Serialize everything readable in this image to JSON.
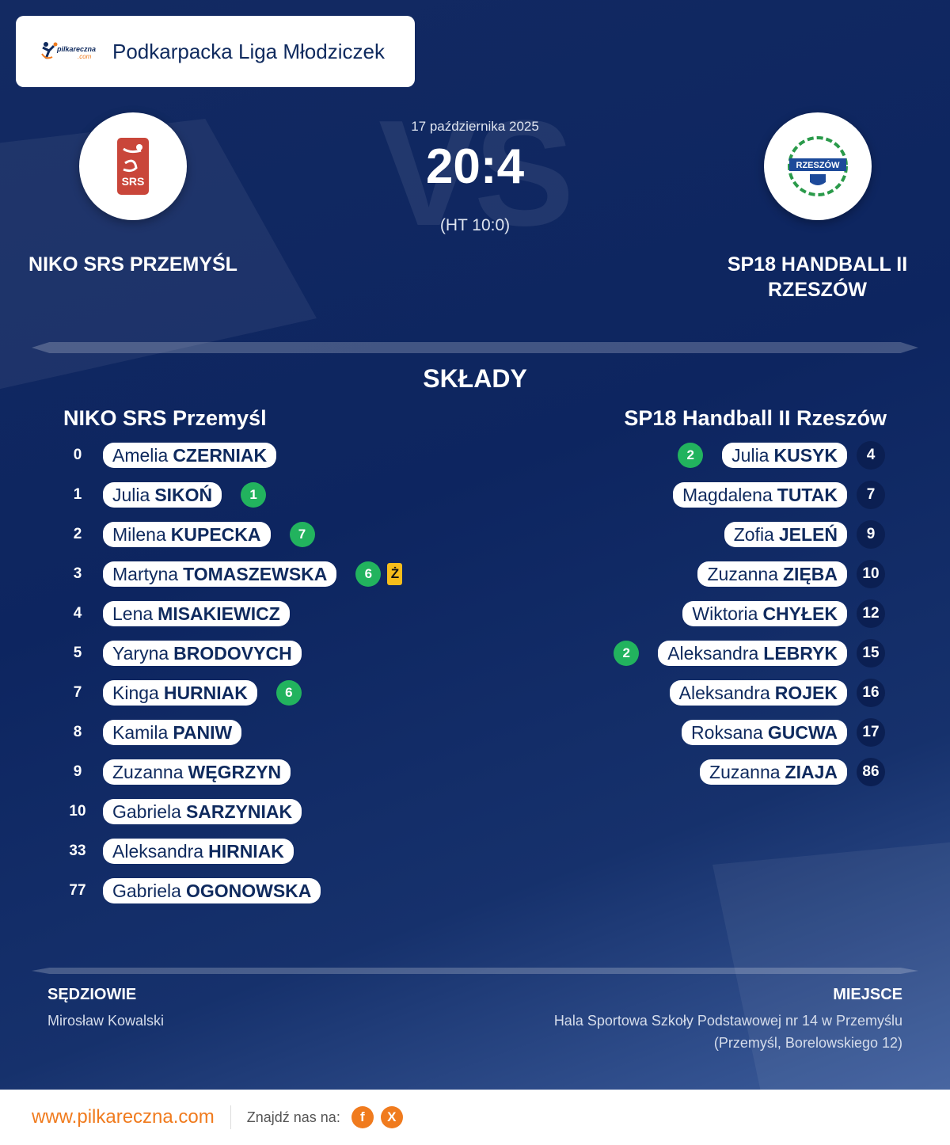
{
  "header": {
    "brand": "pilkareczna.com",
    "league": "Podkarpacka Liga Młodziczek"
  },
  "match": {
    "date": "17 października 2025",
    "score": "20:4",
    "halftime": "(HT 10:0)",
    "vs_watermark": "VS"
  },
  "home": {
    "name_upper": "NIKO SRS PRZEMYŚL",
    "name": "NIKO SRS Przemyśl",
    "crest_text": "SRS"
  },
  "away": {
    "name_upper": "SP18 HANDBALL II RZESZÓW",
    "name": "SP18 Handball II Rzeszów",
    "crest_text": "RZESZÓW"
  },
  "lineups_title": "SKŁADY",
  "home_players": [
    {
      "number": "0",
      "first": "Amelia",
      "last": "CZERNIAK"
    },
    {
      "number": "1",
      "first": "Julia",
      "last": "SIKOŃ",
      "goals": "1"
    },
    {
      "number": "2",
      "first": "Milena",
      "last": "KUPECKA",
      "goals": "7"
    },
    {
      "number": "3",
      "first": "Martyna",
      "last": "TOMASZEWSKA",
      "goals": "6",
      "card": "Ż"
    },
    {
      "number": "4",
      "first": "Lena",
      "last": "MISAKIEWICZ"
    },
    {
      "number": "5",
      "first": "Yaryna",
      "last": "BRODOVYCH"
    },
    {
      "number": "7",
      "first": "Kinga",
      "last": "HURNIAK",
      "goals": "6"
    },
    {
      "number": "8",
      "first": "Kamila",
      "last": "PANIW"
    },
    {
      "number": "9",
      "first": "Zuzanna",
      "last": "WĘGRZYN"
    },
    {
      "number": "10",
      "first": "Gabriela",
      "last": "SARZYNIAK"
    },
    {
      "number": "33",
      "first": "Aleksandra",
      "last": "HIRNIAK"
    },
    {
      "number": "77",
      "first": "Gabriela",
      "last": "OGONOWSKA"
    }
  ],
  "away_players": [
    {
      "number": "4",
      "first": "Julia",
      "last": "KUSYK",
      "goals": "2"
    },
    {
      "number": "7",
      "first": "Magdalena",
      "last": "TUTAK"
    },
    {
      "number": "9",
      "first": "Zofia",
      "last": "JELEŃ"
    },
    {
      "number": "10",
      "first": "Zuzanna",
      "last": "ZIĘBA"
    },
    {
      "number": "12",
      "first": "Wiktoria",
      "last": "CHYŁEK"
    },
    {
      "number": "15",
      "first": "Aleksandra",
      "last": "LEBRYK",
      "goals": "2"
    },
    {
      "number": "16",
      "first": "Aleksandra",
      "last": "ROJEK"
    },
    {
      "number": "17",
      "first": "Roksana",
      "last": "GUCWA"
    },
    {
      "number": "86",
      "first": "Zuzanna",
      "last": "ZIAJA"
    }
  ],
  "referees": {
    "label": "SĘDZIOWIE",
    "value": "Mirosław Kowalski"
  },
  "venue": {
    "label": "MIEJSCE",
    "line1": "Hala Sportowa Szkoły Podstawowej nr 14 w Przemyślu",
    "line2": "(Przemyśl, Borelowskiego 12)"
  },
  "footer": {
    "site": "www.pilkareczna.com",
    "find_us": "Znajdź nas na:",
    "facebook": "f",
    "x": "X"
  },
  "colors": {
    "navy": "#0f2a5e",
    "goal": "#22b35e",
    "yellow_card": "#f6bd1b",
    "accent": "#f07b1e"
  }
}
